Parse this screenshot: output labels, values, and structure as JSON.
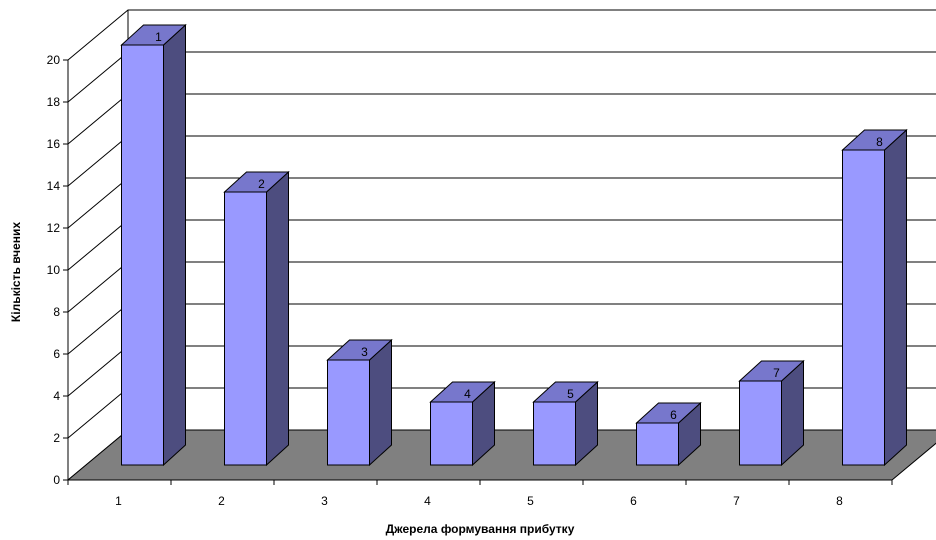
{
  "chart_data": {
    "type": "bar",
    "title": "",
    "xlabel": "Джерела формування прибутку",
    "ylabel": "Кількість вчених",
    "categories": [
      "1",
      "2",
      "3",
      "4",
      "5",
      "6",
      "7",
      "8"
    ],
    "values": [
      20,
      13,
      5,
      3,
      3,
      2,
      4,
      15
    ],
    "data_labels": [
      "1",
      "2",
      "3",
      "4",
      "5",
      "6",
      "7",
      "8"
    ],
    "ylim": [
      0,
      20
    ],
    "yticks": [
      "0",
      "2",
      "4",
      "6",
      "8",
      "10",
      "12",
      "14",
      "16",
      "18",
      "20"
    ],
    "grid": true,
    "legend": "none",
    "style": "3d-column",
    "colors": {
      "bar_front": "#9999ff",
      "bar_side": "#4d4d7f",
      "bar_top": "#7777cc",
      "floor": "#808080",
      "gridline": "#000000"
    }
  }
}
